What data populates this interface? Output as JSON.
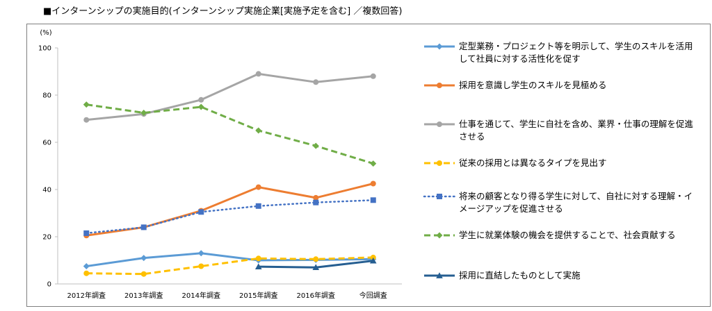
{
  "title": "■インターンシップの実施目的(インターンシップ実施企業[実施予定を含む] ／複数回答)",
  "chart_data": {
    "type": "line",
    "ylabel": "(%)",
    "ylim": [
      0,
      100
    ],
    "yticks": [
      0,
      20,
      40,
      60,
      80,
      100
    ],
    "categories": [
      "2012年調査",
      "2013年調査",
      "2014年調査",
      "2015年調査",
      "2016年調査",
      "今回調査"
    ],
    "grid": false,
    "legend_position": "right",
    "series": [
      {
        "name": "定型業務・プロジェクト等を明示して、学生のスキルを活用して社員に対する活性化を促す",
        "color": "#5b9bd5",
        "style": "solid",
        "marker": "diamond",
        "values": [
          7.5,
          11,
          13,
          10,
          10.2,
          10.5
        ]
      },
      {
        "name": "採用を意識し学生のスキルを見極める",
        "color": "#ed7d31",
        "style": "solid",
        "marker": "circle",
        "values": [
          20.5,
          24,
          31,
          41,
          36.5,
          42.5
        ]
      },
      {
        "name": "仕事を通じて、学生に自社を含め、業界・仕事の理解を促進させる",
        "color": "#a5a5a5",
        "style": "solid",
        "marker": "circle",
        "values": [
          69.5,
          72,
          78,
          89,
          85.5,
          88
        ]
      },
      {
        "name": "従来の採用とは異なるタイプを見出す",
        "color": "#ffc000",
        "style": "dashed",
        "marker": "circle",
        "values": [
          4.5,
          4.2,
          7.5,
          10.8,
          10.5,
          11.2
        ]
      },
      {
        "name": "将来の顧客となり得る学生に対して、自社に対する理解・イメージアップを促進させる",
        "color": "#4472c4",
        "style": "dotted",
        "marker": "square",
        "values": [
          21.5,
          24,
          30.5,
          33,
          34.5,
          35.5
        ]
      },
      {
        "name": "学生に就業体験の機会を提供することで、社会貢献する",
        "color": "#70ad47",
        "style": "dashed",
        "marker": "diamond",
        "values": [
          76,
          72.5,
          75,
          65,
          58.5,
          51
        ]
      },
      {
        "name": "採用に直結したものとして実施",
        "color": "#255e91",
        "style": "solid",
        "marker": "triangle",
        "values": [
          null,
          null,
          null,
          7.3,
          7,
          9.8
        ]
      }
    ]
  }
}
